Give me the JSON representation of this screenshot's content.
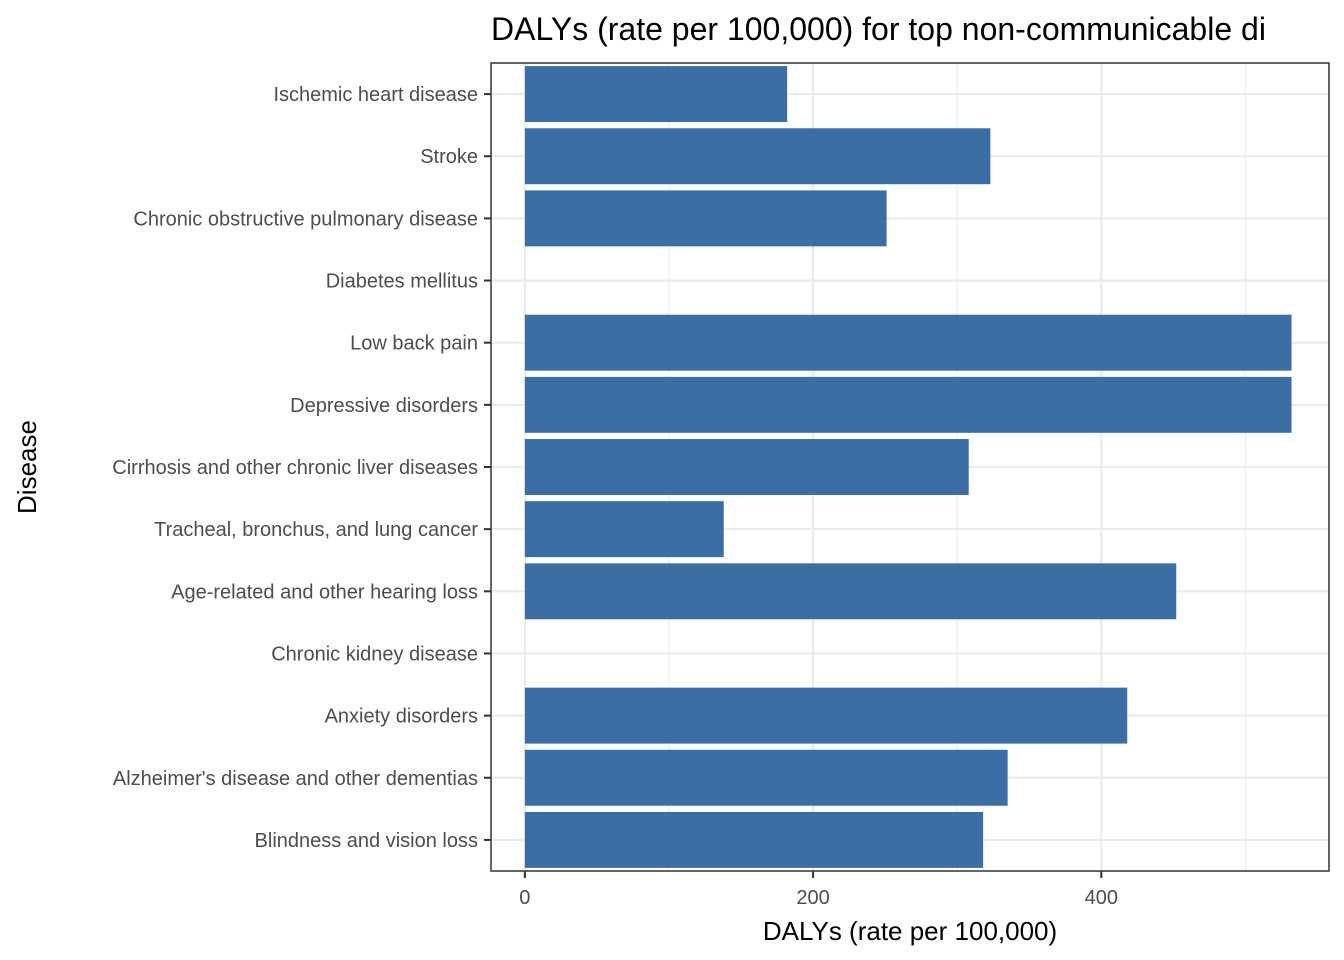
{
  "chart_data": {
    "type": "bar",
    "orientation": "horizontal",
    "title": "DALYs (rate per 100,000) for top non-communicable di",
    "xlabel": "DALYs (rate per 100,000)",
    "ylabel": "Disease",
    "categories": [
      "Ischemic heart disease",
      "Stroke",
      "Chronic obstructive pulmonary disease",
      "Diabetes mellitus",
      "Low back pain",
      "Depressive disorders",
      "Cirrhosis and other chronic liver diseases",
      "Tracheal, bronchus, and lung cancer",
      "Age-related and other hearing loss",
      "Chronic kidney disease",
      "Anxiety disorders",
      "Alzheimer's disease and other dementias",
      "Blindness and vision loss"
    ],
    "values": [
      182,
      323,
      251,
      null,
      532,
      532,
      308,
      138,
      452,
      null,
      418,
      335,
      318
    ],
    "xticks": [
      "0",
      "200",
      "400"
    ],
    "xtick_values": [
      0,
      200,
      400
    ],
    "xlim": [
      -23.5,
      558
    ],
    "grid": true,
    "legend": "none",
    "bar_color": "#3a6ea5",
    "grid_color": "#ebebeb",
    "panel_border_color": "#333333",
    "tick_label_color": "#4d4d4d"
  }
}
